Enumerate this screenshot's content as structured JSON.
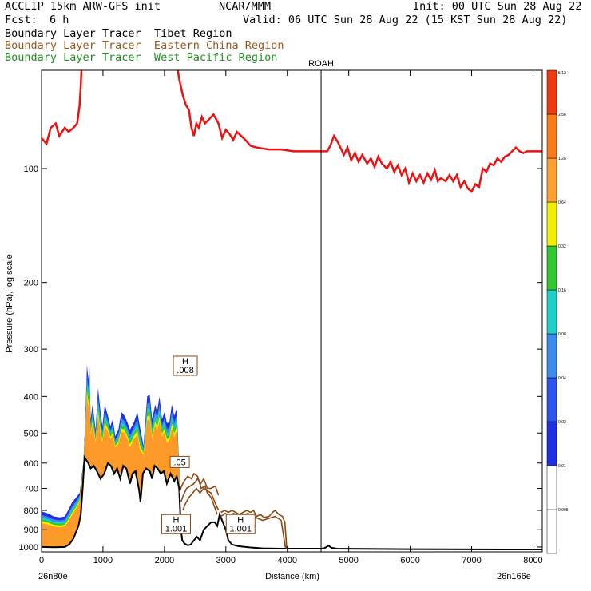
{
  "header": {
    "model": "ACCLIP 15km ARW-GFS init",
    "org": "NCAR/MMM",
    "init": "Init: 00 UTC Sun 28 Aug 22",
    "fcst_label": "Fcst:",
    "fcst_value": "6 h",
    "valid": "Valid: 06 UTC Sun 28 Aug 22 (15 KST Sun 28 Aug 22)",
    "legend": [
      {
        "label": "Boundary Layer Tracer  Tibet Region",
        "color": "#000000"
      },
      {
        "label": "Boundary Layer Tracer  Eastern China Region",
        "color": "#9a5a1e"
      },
      {
        "label": "Boundary Layer Tracer  West Pacific Region",
        "color": "#1f8f1f"
      }
    ]
  },
  "chart_data": {
    "type": "cross-section",
    "xlabel": "Distance (km)",
    "ylabel": "Pressure (hPa), log scale",
    "xlim": [
      0,
      8150
    ],
    "ylim": [
      1030,
      55
    ],
    "x_ticks": [
      0,
      1000,
      2000,
      3000,
      4000,
      5000,
      6000,
      7000,
      8000
    ],
    "y_ticks": [
      100,
      200,
      300,
      400,
      500,
      600,
      700,
      800,
      900,
      1000
    ],
    "left_endpoint": "26n80e",
    "right_endpoint": "26n166e",
    "station_marker": {
      "label": "ROAH",
      "x": 4550
    },
    "tropopause": [
      [
        0,
        83
      ],
      [
        80,
        86
      ],
      [
        150,
        78
      ],
      [
        230,
        76
      ],
      [
        290,
        82
      ],
      [
        380,
        78
      ],
      [
        440,
        80
      ],
      [
        520,
        78
      ],
      [
        580,
        76
      ],
      [
        620,
        68
      ],
      [
        640,
        60
      ],
      [
        660,
        50
      ],
      [
        2180,
        50
      ],
      [
        2240,
        58
      ],
      [
        2300,
        64
      ],
      [
        2350,
        68
      ],
      [
        2400,
        70
      ],
      [
        2440,
        78
      ],
      [
        2480,
        82
      ],
      [
        2520,
        76
      ],
      [
        2560,
        78
      ],
      [
        2610,
        73
      ],
      [
        2660,
        76
      ],
      [
        2730,
        74
      ],
      [
        2800,
        72
      ],
      [
        2880,
        76
      ],
      [
        2940,
        83
      ],
      [
        3000,
        79
      ],
      [
        3060,
        81
      ],
      [
        3120,
        84
      ],
      [
        3180,
        80
      ],
      [
        3250,
        82
      ],
      [
        3320,
        84
      ],
      [
        3400,
        87
      ],
      [
        3500,
        88
      ],
      [
        3700,
        89
      ],
      [
        3900,
        89
      ],
      [
        4100,
        90
      ],
      [
        4300,
        90
      ],
      [
        4500,
        90
      ],
      [
        4650,
        90
      ],
      [
        4700,
        87
      ],
      [
        4760,
        82
      ],
      [
        4820,
        85
      ],
      [
        4880,
        89
      ],
      [
        4920,
        92
      ],
      [
        4980,
        88
      ],
      [
        5040,
        95
      ],
      [
        5100,
        91
      ],
      [
        5160,
        96
      ],
      [
        5220,
        92
      ],
      [
        5300,
        97
      ],
      [
        5360,
        94
      ],
      [
        5420,
        99
      ],
      [
        5480,
        93
      ],
      [
        5540,
        97
      ],
      [
        5620,
        100
      ],
      [
        5680,
        96
      ],
      [
        5740,
        102
      ],
      [
        5800,
        98
      ],
      [
        5860,
        104
      ],
      [
        5920,
        100
      ],
      [
        5980,
        109
      ],
      [
        6040,
        103
      ],
      [
        6100,
        108
      ],
      [
        6160,
        104
      ],
      [
        6220,
        109
      ],
      [
        6280,
        103
      ],
      [
        6340,
        107
      ],
      [
        6400,
        101
      ],
      [
        6450,
        108
      ],
      [
        6500,
        106
      ],
      [
        6580,
        108
      ],
      [
        6640,
        104
      ],
      [
        6700,
        108
      ],
      [
        6760,
        104
      ],
      [
        6820,
        112
      ],
      [
        6880,
        108
      ],
      [
        6940,
        113
      ],
      [
        7000,
        115
      ],
      [
        7060,
        110
      ],
      [
        7120,
        112
      ],
      [
        7180,
        100
      ],
      [
        7240,
        102
      ],
      [
        7300,
        97
      ],
      [
        7360,
        98
      ],
      [
        7420,
        94
      ],
      [
        7480,
        96
      ],
      [
        7540,
        93
      ],
      [
        7600,
        92
      ],
      [
        7660,
        90
      ],
      [
        7720,
        88
      ],
      [
        7780,
        90
      ],
      [
        7840,
        91
      ],
      [
        7900,
        90
      ],
      [
        8150,
        90
      ]
    ],
    "surface": [
      [
        0,
        1000
      ],
      [
        200,
        1002
      ],
      [
        380,
        1000
      ],
      [
        450,
        985
      ],
      [
        520,
        950
      ],
      [
        600,
        880
      ],
      [
        640,
        820
      ],
      [
        670,
        700
      ],
      [
        700,
        580
      ],
      [
        760,
        600
      ],
      [
        800,
        620
      ],
      [
        850,
        610
      ],
      [
        900,
        630
      ],
      [
        960,
        660
      ],
      [
        1020,
        640
      ],
      [
        1080,
        600
      ],
      [
        1130,
        610
      ],
      [
        1180,
        640
      ],
      [
        1230,
        620
      ],
      [
        1280,
        660
      ],
      [
        1330,
        610
      ],
      [
        1380,
        620
      ],
      [
        1440,
        680
      ],
      [
        1480,
        640
      ],
      [
        1530,
        630
      ],
      [
        1590,
        710
      ],
      [
        1610,
        760
      ],
      [
        1650,
        640
      ],
      [
        1700,
        620
      ],
      [
        1760,
        630
      ],
      [
        1800,
        660
      ],
      [
        1840,
        610
      ],
      [
        1890,
        620
      ],
      [
        1940,
        640
      ],
      [
        1990,
        630
      ],
      [
        2040,
        680
      ],
      [
        2100,
        640
      ],
      [
        2160,
        670
      ],
      [
        2200,
        650
      ],
      [
        2240,
        700
      ],
      [
        2270,
        900
      ],
      [
        2290,
        960
      ],
      [
        2330,
        980
      ],
      [
        2380,
        990
      ],
      [
        2430,
        985
      ],
      [
        2480,
        960
      ],
      [
        2530,
        940
      ],
      [
        2580,
        960
      ],
      [
        2640,
        900
      ],
      [
        2700,
        880
      ],
      [
        2760,
        860
      ],
      [
        2820,
        860
      ],
      [
        2860,
        880
      ],
      [
        2900,
        820
      ],
      [
        2950,
        860
      ],
      [
        3000,
        900
      ],
      [
        3040,
        960
      ],
      [
        3100,
        985
      ],
      [
        3200,
        995
      ],
      [
        3400,
        1003
      ],
      [
        3600,
        1008
      ],
      [
        3900,
        1010
      ],
      [
        4200,
        1010
      ],
      [
        4550,
        1010
      ],
      [
        4600,
        1008
      ],
      [
        4670,
        992
      ],
      [
        4720,
        1005
      ],
      [
        4800,
        1010
      ],
      [
        5500,
        1012
      ],
      [
        6500,
        1014
      ],
      [
        7500,
        1015
      ],
      [
        8150,
        1015
      ]
    ],
    "color_levels": [
      0.005,
      0.01,
      0.02,
      0.04,
      0.08,
      0.16,
      0.32,
      0.64,
      1.28,
      2.56,
      5.12
    ],
    "colorbar_colors": [
      "#ffffff",
      "#ffffff",
      "#1f2fe6",
      "#2d55f0",
      "#3b8aee",
      "#1fd0c8",
      "#2fc82f",
      "#eef000",
      "#fda030",
      "#fd7a1a",
      "#f03a10"
    ],
    "h_labels": [
      {
        "text": "H",
        "value": ".008",
        "x": 2340,
        "p": 332
      },
      {
        "text": "",
        "value": ".05",
        "x": 2250,
        "p": 596
      },
      {
        "text": "H",
        "value": "1.001",
        "x": 2190,
        "p": 870
      },
      {
        "text": "H",
        "value": "1.001",
        "x": 3240,
        "p": 870
      }
    ],
    "tibet_upper": [
      [
        0,
        805
      ],
      [
        100,
        815
      ],
      [
        200,
        830
      ],
      [
        300,
        835
      ],
      [
        380,
        830
      ],
      [
        450,
        790
      ],
      [
        500,
        760
      ],
      [
        550,
        745
      ],
      [
        620,
        720
      ],
      [
        680,
        600
      ],
      [
        710,
        470
      ],
      [
        740,
        330
      ],
      [
        760,
        360
      ],
      [
        780,
        330
      ],
      [
        800,
        460
      ],
      [
        830,
        420
      ],
      [
        880,
        490
      ],
      [
        920,
        380
      ],
      [
        960,
        440
      ],
      [
        990,
        480
      ],
      [
        1030,
        420
      ],
      [
        1080,
        450
      ],
      [
        1120,
        480
      ],
      [
        1160,
        460
      ],
      [
        1200,
        510
      ],
      [
        1250,
        490
      ],
      [
        1300,
        440
      ],
      [
        1350,
        450
      ],
      [
        1400,
        470
      ],
      [
        1440,
        490
      ],
      [
        1500,
        470
      ],
      [
        1560,
        440
      ],
      [
        1600,
        480
      ],
      [
        1660,
        540
      ],
      [
        1700,
        440
      ],
      [
        1720,
        400
      ],
      [
        1760,
        395
      ],
      [
        1800,
        460
      ],
      [
        1850,
        420
      ],
      [
        1880,
        440
      ],
      [
        1920,
        400
      ],
      [
        1960,
        460
      ],
      [
        2000,
        440
      ],
      [
        2040,
        470
      ],
      [
        2080,
        470
      ],
      [
        2120,
        420
      ],
      [
        2160,
        450
      ],
      [
        2200,
        430
      ],
      [
        2230,
        560
      ],
      [
        2245,
        610
      ]
    ],
    "brown_sections": [
      [
        [
          2240,
          720
        ],
        [
          2280,
          690
        ],
        [
          2320,
          670
        ],
        [
          2380,
          650
        ],
        [
          2440,
          660
        ],
        [
          2480,
          640
        ],
        [
          2540,
          650
        ],
        [
          2600,
          700
        ],
        [
          2660,
          690
        ],
        [
          2700,
          720
        ],
        [
          2760,
          740
        ],
        [
          2800,
          770
        ],
        [
          2860,
          820
        ]
      ],
      [
        [
          2270,
          760
        ],
        [
          2310,
          730
        ],
        [
          2360,
          700
        ],
        [
          2420,
          690
        ],
        [
          2480,
          680
        ],
        [
          2540,
          660
        ],
        [
          2590,
          680
        ],
        [
          2640,
          660
        ],
        [
          2700,
          700
        ],
        [
          2760,
          700
        ],
        [
          2830,
          690
        ],
        [
          2880,
          730
        ]
      ],
      [
        [
          2300,
          800
        ],
        [
          2340,
          770
        ],
        [
          2400,
          740
        ],
        [
          2460,
          720
        ],
        [
          2520,
          700
        ],
        [
          2580,
          720
        ],
        [
          2640,
          700
        ],
        [
          2700,
          710
        ],
        [
          2760,
          720
        ],
        [
          2820,
          760
        ],
        [
          2880,
          800
        ]
      ],
      [
        [
          2920,
          810
        ],
        [
          2980,
          800
        ],
        [
          3040,
          810
        ],
        [
          3100,
          800
        ],
        [
          3160,
          810
        ],
        [
          3220,
          820
        ],
        [
          3280,
          810
        ],
        [
          3340,
          800
        ],
        [
          3400,
          810
        ],
        [
          3450,
          800
        ],
        [
          3500,
          830
        ],
        [
          3560,
          820
        ],
        [
          3620,
          835
        ],
        [
          3700,
          830
        ],
        [
          3760,
          810
        ],
        [
          3800,
          800
        ],
        [
          3860,
          820
        ],
        [
          3920,
          830
        ],
        [
          3960,
          860
        ],
        [
          3990,
          1010
        ]
      ],
      [
        [
          2920,
          830
        ],
        [
          2990,
          815
        ],
        [
          3060,
          825
        ],
        [
          3130,
          815
        ],
        [
          3200,
          830
        ],
        [
          3280,
          825
        ],
        [
          3360,
          815
        ],
        [
          3440,
          830
        ],
        [
          3520,
          840
        ],
        [
          3600,
          850
        ],
        [
          3700,
          840
        ],
        [
          3800,
          830
        ],
        [
          3900,
          850
        ],
        [
          3970,
          1005
        ]
      ]
    ]
  }
}
